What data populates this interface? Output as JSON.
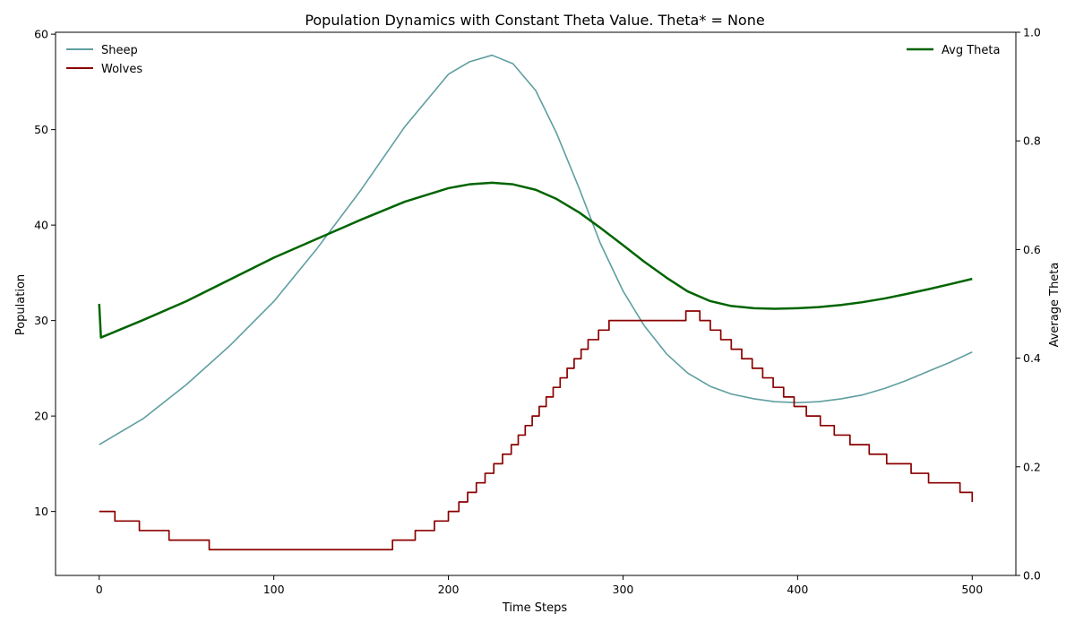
{
  "chart_data": {
    "type": "line",
    "title": "Population Dynamics with Constant Theta Value. Theta* = None",
    "xlabel": "Time Steps",
    "ylabel": "Population",
    "y2label": "Average Theta",
    "xlim": [
      -25,
      525
    ],
    "ylim": [
      3.3,
      60.2
    ],
    "y2lim": [
      0.0,
      1.0
    ],
    "xticks": [
      0,
      100,
      200,
      300,
      400,
      500
    ],
    "yticks": [
      10,
      20,
      30,
      40,
      50,
      60
    ],
    "y2ticks": [
      0.0,
      0.2,
      0.4,
      0.6,
      0.8,
      1.0
    ],
    "y2tick_labels": [
      "0.0",
      "0.2",
      "0.4",
      "0.6",
      "0.8",
      "1.0"
    ],
    "grid": false,
    "legend_left": [
      "Sheep",
      "Wolves"
    ],
    "legend_right": [
      "Avg Theta"
    ],
    "series": [
      {
        "name": "Sheep",
        "axis": "left",
        "color": "#5f9ea0",
        "step": false,
        "x": [
          0,
          25,
          50,
          75,
          100,
          125,
          150,
          175,
          200,
          212,
          225,
          237,
          250,
          262,
          275,
          287,
          300,
          312,
          325,
          337,
          350,
          362,
          375,
          387,
          400,
          412,
          425,
          437,
          450,
          462,
          475,
          487,
          500
        ],
        "y": [
          17.0,
          19.7,
          23.3,
          27.4,
          32.0,
          37.6,
          43.7,
          50.3,
          55.8,
          57.1,
          57.8,
          56.9,
          54.1,
          49.6,
          43.8,
          38.1,
          33.1,
          29.5,
          26.5,
          24.5,
          23.1,
          22.3,
          21.8,
          21.5,
          21.4,
          21.5,
          21.8,
          22.2,
          22.9,
          23.7,
          24.7,
          25.6,
          26.7
        ]
      },
      {
        "name": "Wolves",
        "axis": "left",
        "color": "#8b0000",
        "step": true,
        "x": [
          0,
          9,
          23,
          40,
          63,
          168,
          181,
          192,
          200,
          206,
          211,
          216,
          221,
          226,
          231,
          236,
          240,
          244,
          248,
          252,
          256,
          260,
          264,
          268,
          272,
          276,
          280,
          286,
          292,
          336,
          344,
          350,
          356,
          362,
          368,
          374,
          380,
          386,
          392,
          398,
          405,
          413,
          421,
          430,
          441,
          451,
          465,
          475,
          493,
          500
        ],
        "y": [
          10,
          9,
          8,
          7,
          6,
          7,
          8,
          9,
          10,
          11,
          12,
          13,
          14,
          15,
          16,
          17,
          18,
          19,
          20,
          21,
          22,
          23,
          24,
          25,
          26,
          27,
          28,
          29,
          30,
          31,
          30,
          29,
          28,
          27,
          26,
          25,
          24,
          23,
          22,
          21,
          20,
          19,
          18,
          17,
          16,
          15,
          14,
          13,
          12,
          11
        ],
        "step_values_after_x": true
      },
      {
        "name": "Avg Theta",
        "axis": "right",
        "color": "#006400",
        "step": false,
        "x": [
          0,
          1,
          25,
          50,
          75,
          100,
          125,
          150,
          175,
          200,
          212,
          225,
          237,
          250,
          262,
          275,
          287,
          300,
          312,
          325,
          337,
          350,
          362,
          375,
          387,
          400,
          412,
          425,
          437,
          450,
          462,
          475,
          487,
          500
        ],
        "y": [
          0.5,
          0.438,
          0.47,
          0.505,
          0.545,
          0.585,
          0.62,
          0.655,
          0.688,
          0.713,
          0.72,
          0.723,
          0.72,
          0.71,
          0.693,
          0.668,
          0.64,
          0.608,
          0.578,
          0.548,
          0.523,
          0.505,
          0.496,
          0.492,
          0.491,
          0.492,
          0.494,
          0.498,
          0.503,
          0.51,
          0.518,
          0.527,
          0.536,
          0.546
        ]
      }
    ]
  }
}
